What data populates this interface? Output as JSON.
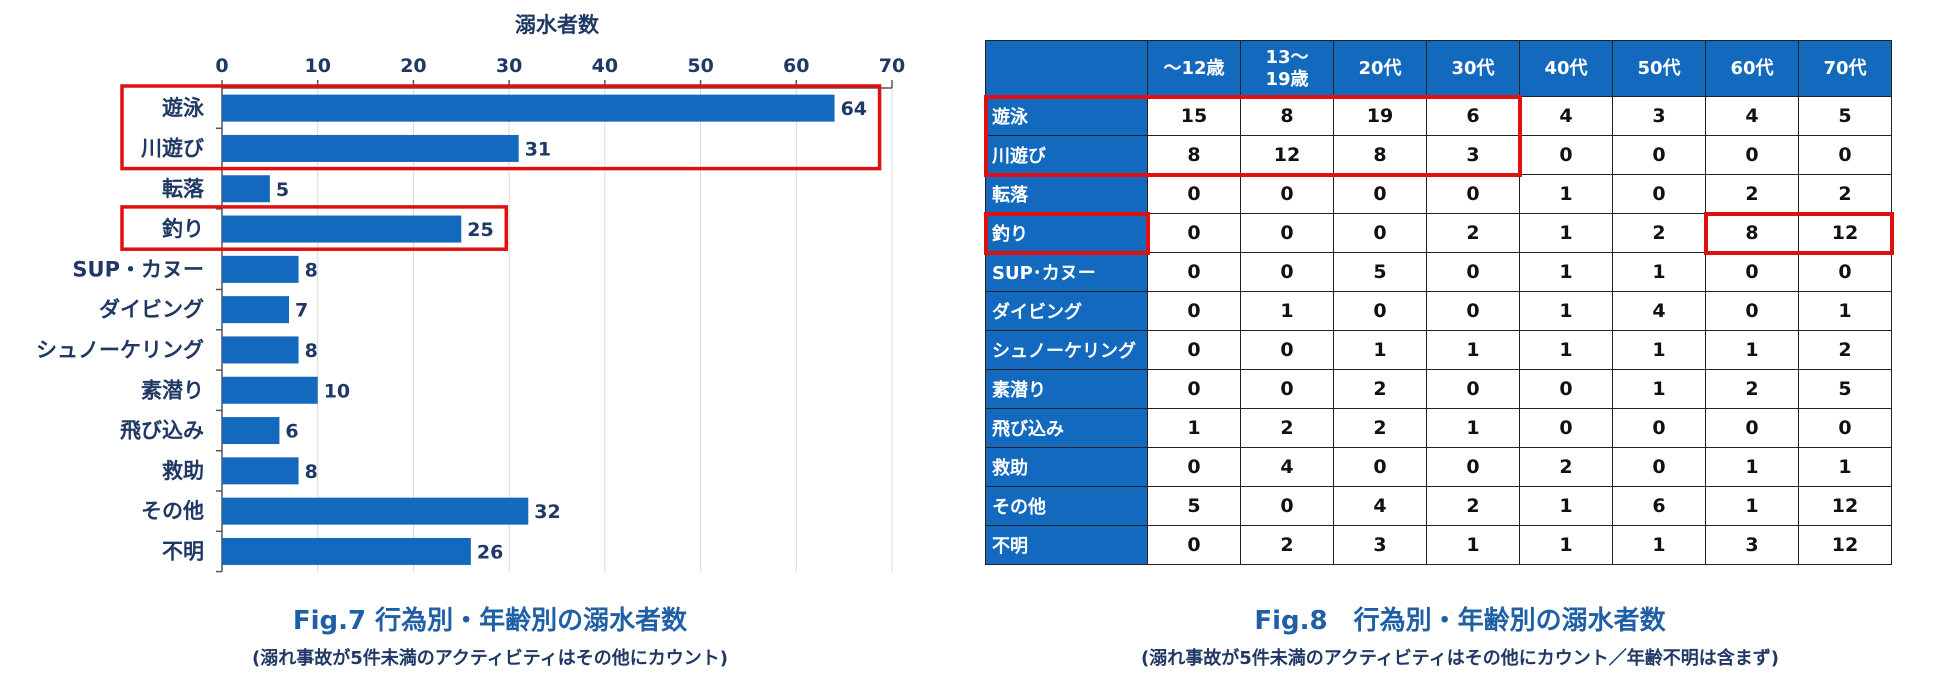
{
  "figure7": {
    "title": "Fig.7 行為別・年齢別の溺水者数",
    "note": "(溺れ事故が5件未満のアクティビティはその他にカウント)"
  },
  "figure8": {
    "title": "Fig.8　行為別・年齢別の溺水者数",
    "note": "(溺れ事故が5件未満のアクティビティはその他にカウント／年齢不明は含まず)"
  },
  "colors": {
    "bar": "#1369bd",
    "highlight": "#e01010",
    "text": "#1f3864"
  },
  "chart_data": [
    {
      "type": "bar",
      "orientation": "horizontal",
      "xlabel": "溺水者数",
      "xlim": [
        0,
        70
      ],
      "xticks": [
        0,
        10,
        20,
        30,
        40,
        50,
        60,
        70
      ],
      "grid": true,
      "categories": [
        "遊泳",
        "川遊び",
        "転落",
        "釣り",
        "SUP・カヌー",
        "ダイビング",
        "シュノーケリング",
        "素潜り",
        "飛び込み",
        "救助",
        "その他",
        "不明"
      ],
      "values": [
        64,
        31,
        5,
        25,
        8,
        7,
        8,
        10,
        6,
        8,
        32,
        26
      ],
      "highlighted_categories": [
        "遊泳",
        "川遊び",
        "釣り"
      ]
    },
    {
      "type": "table",
      "columns": [
        "～12歳",
        "13～\n19歳",
        "20代",
        "30代",
        "40代",
        "50代",
        "60代",
        "70代"
      ],
      "rows": [
        {
          "label": "遊泳",
          "values": [
            "15",
            "8",
            "19",
            "6",
            "4",
            "3",
            "4",
            "5"
          ]
        },
        {
          "label": "川遊び",
          "values": [
            "8",
            "12",
            "8",
            "3",
            "0",
            "0",
            "0",
            "0"
          ]
        },
        {
          "label": "転落",
          "values": [
            "0",
            "0",
            "0",
            "0",
            "1",
            "0",
            "2",
            "2"
          ]
        },
        {
          "label": "釣り",
          "values": [
            "0",
            "0",
            "0",
            "2",
            "1",
            "2",
            "8",
            "12"
          ]
        },
        {
          "label": "SUP･カヌー",
          "values": [
            "0",
            "0",
            "5",
            "0",
            "1",
            "1",
            "0",
            "0"
          ]
        },
        {
          "label": "ダイビング",
          "values": [
            "0",
            "1",
            "0",
            "0",
            "1",
            "4",
            "0",
            "1"
          ]
        },
        {
          "label": "シュノーケリング",
          "values": [
            "0",
            "0",
            "1",
            "1",
            "1",
            "1",
            "1",
            "2"
          ]
        },
        {
          "label": "素潜り",
          "values": [
            "0",
            "0",
            "2",
            "0",
            "0",
            "1",
            "2",
            "5"
          ]
        },
        {
          "label": "飛び込み",
          "values": [
            "1",
            "2",
            "2",
            "1",
            "0",
            "0",
            "0",
            "0"
          ]
        },
        {
          "label": "救助",
          "values": [
            "0",
            "4",
            "0",
            "0",
            "2",
            "0",
            "1",
            "1"
          ]
        },
        {
          "label": "その他",
          "values": [
            "5",
            "0",
            "4",
            "2",
            "1",
            "6",
            "1",
            "12"
          ]
        },
        {
          "label": "不明",
          "values": [
            "0",
            "2",
            "3",
            "1",
            "1",
            "1",
            "3",
            "12"
          ]
        }
      ]
    }
  ]
}
